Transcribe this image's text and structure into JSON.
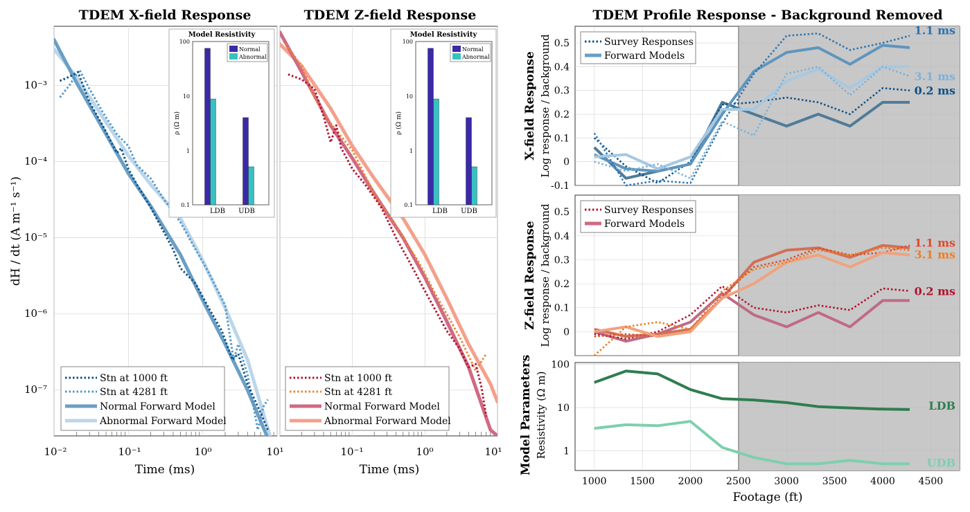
{
  "titles": {
    "x_field": "TDEM X-field Response",
    "z_field": "TDEM Z-field Response",
    "profile": "TDEM Profile Response - Background Removed"
  },
  "colors": {
    "x_stn1000": "#0d4f86",
    "x_stn4281": "#4f97c8",
    "x_normal": "#6a9fc4",
    "x_abnormal": "#bcd6ea",
    "z_stn1000": "#b1112b",
    "z_stn4281": "#ef8331",
    "z_normal": "#d06a83",
    "z_abnormal": "#f4a08a",
    "bar_normal": "#3a2aa8",
    "bar_abnormal": "#38c1c3",
    "shade": "#c8c8c8",
    "ldb": "#2f7d4e",
    "udb": "#7fcfae"
  },
  "chart_data": [
    {
      "id": "x_decay",
      "type": "line",
      "title": "TDEM X-field Response",
      "xlabel": "Time (ms)",
      "ylabel": "dH / dt (A m⁻¹ s⁻¹)",
      "xscale": "log",
      "yscale": "log",
      "xlim": [
        0.01,
        10
      ],
      "ylim": [
        2.5e-08,
        0.006
      ],
      "xtick_labels": [
        "10⁻²",
        "10⁻¹",
        "10⁰",
        "10¹"
      ],
      "ytick_labels": [
        "10⁻³",
        "10⁻⁴",
        "10⁻⁵",
        "10⁻⁶",
        "10⁻⁷"
      ],
      "legend_position": "bottom-left",
      "series": [
        {
          "name": "Stn at 1000 ft",
          "style": "dotted",
          "color_key": "x_stn1000",
          "x": [
            0.012,
            0.016,
            0.021,
            0.03,
            0.045,
            0.07,
            0.08,
            0.1,
            0.13,
            0.2,
            0.4,
            0.5,
            0.8,
            1.2,
            1.8,
            2.5,
            3.0,
            4.0,
            6.0,
            7.5
          ],
          "y": [
            0.00115,
            0.0013,
            0.0015,
            0.0006,
            0.0003,
            0.00013,
            0.00015,
            8e-05,
            5e-05,
            2.5e-05,
            7e-06,
            4e-06,
            2.5e-06,
            1.2e-06,
            6e-07,
            2.5e-07,
            3e-07,
            1.2e-07,
            5e-08,
            3e-08
          ]
        },
        {
          "name": "Stn at 4281 ft",
          "style": "dotted",
          "color_key": "x_stn4281",
          "x": [
            0.012,
            0.016,
            0.022,
            0.03,
            0.045,
            0.07,
            0.1,
            0.13,
            0.2,
            0.3,
            0.5,
            0.8,
            1.2,
            2.0,
            2.6,
            3.0,
            4.0,
            5.5,
            6.5,
            7.5
          ],
          "y": [
            0.0007,
            0.001,
            0.0016,
            0.0009,
            0.00045,
            0.00023,
            0.00016,
            9e-05,
            6e-05,
            3.2e-05,
            1.6e-05,
            7e-06,
            3.5e-06,
            1.3e-06,
            2.5e-07,
            4e-07,
            1.6e-07,
            3e-08,
            6e-08,
            7.5e-08
          ]
        },
        {
          "name": "Normal Forward Model",
          "style": "solid",
          "color_key": "x_normal",
          "x": [
            0.01,
            0.02,
            0.05,
            0.1,
            0.2,
            0.5,
            1.0,
            2.0,
            4.0,
            8.0
          ],
          "y": [
            0.004,
            0.0011,
            0.00023,
            7e-05,
            2.6e-05,
            6e-06,
            1.5e-06,
            4e-07,
            1e-07,
            2e-08
          ]
        },
        {
          "name": "Abnormal Forward Model",
          "style": "solid",
          "color_key": "x_abnormal",
          "x": [
            0.01,
            0.02,
            0.05,
            0.1,
            0.2,
            0.5,
            1.0,
            2.0,
            4.0,
            8.0
          ],
          "y": [
            0.003,
            0.0013,
            0.00033,
            0.00012,
            5e-05,
            1.8e-05,
            5e-06,
            1.2e-06,
            2.5e-07,
            2.5e-08
          ]
        }
      ]
    },
    {
      "id": "z_decay",
      "type": "line",
      "title": "TDEM Z-field Response",
      "xlabel": "Time (ms)",
      "xscale": "log",
      "yscale": "log",
      "xlim": [
        0.01,
        10
      ],
      "ylim": [
        2.5e-08,
        0.006
      ],
      "xtick_labels": [
        "10⁻²",
        "10⁻¹",
        "10⁰",
        "10¹"
      ],
      "legend_position": "bottom-left",
      "series": [
        {
          "name": "Stn at 1000 ft",
          "style": "dotted",
          "color_key": "z_stn1000",
          "x": [
            0.013,
            0.02,
            0.03,
            0.04,
            0.05,
            0.06,
            0.07,
            0.1,
            0.15,
            0.25,
            0.4,
            0.6,
            1.0,
            2.0,
            3.0,
            4.0,
            5.0,
            6.0,
            7.0
          ],
          "y": [
            0.0014,
            0.0012,
            0.0009,
            0.0004,
            0.00018,
            0.0003,
            0.00015,
            8e-05,
            5e-05,
            2.5e-05,
            1e-05,
            5e-06,
            2e-06,
            6e-07,
            3.5e-07,
            2e-07,
            2.2e-07,
            1.1e-07,
            4.5e-08
          ]
        },
        {
          "name": "Stn at 4281 ft",
          "style": "dotted",
          "color_key": "z_stn4281",
          "x": [
            0.012,
            0.02,
            0.03,
            0.05,
            0.1,
            0.2,
            0.4,
            0.8,
            1.5,
            3.0,
            5.0,
            7.0
          ],
          "y": [
            0.0035,
            0.0018,
            0.0007,
            0.00032,
            0.00014,
            3.8e-05,
            1.4e-05,
            5e-06,
            1.6e-06,
            5e-07,
            1.8e-07,
            3e-07
          ]
        },
        {
          "name": "Normal Forward Model",
          "style": "solid",
          "color_key": "z_normal",
          "x": [
            0.01,
            0.02,
            0.05,
            0.1,
            0.2,
            0.5,
            1.0,
            2.0,
            4.0,
            8.0,
            10.0
          ],
          "y": [
            0.005,
            0.0015,
            0.0003,
            0.00011,
            3.8e-05,
            1e-05,
            3e-06,
            8e-07,
            2e-07,
            3e-08,
            2.5e-08
          ]
        },
        {
          "name": "Abnormal Forward Model",
          "style": "solid",
          "color_key": "z_abnormal",
          "x": [
            0.01,
            0.02,
            0.05,
            0.1,
            0.2,
            0.5,
            1.0,
            2.0,
            4.0,
            8.0,
            10.0
          ],
          "y": [
            0.0035,
            0.0018,
            0.0005,
            0.00016,
            6e-05,
            1.8e-05,
            6e-06,
            1.6e-06,
            4e-07,
            1.2e-07,
            7e-08
          ]
        }
      ]
    },
    {
      "id": "x_inset",
      "type": "bar",
      "title": "Model Resistivity",
      "ylabel": "ρ (Ω m)",
      "yscale": "log",
      "ylim": [
        0.1,
        100
      ],
      "ytick_labels": [
        "100",
        "10",
        "1",
        "0.1"
      ],
      "categories": [
        "LDB",
        "UDB"
      ],
      "series": [
        {
          "name": "Normal",
          "color_key": "bar_normal",
          "values": [
            75,
            4
          ]
        },
        {
          "name": "Abnormal",
          "color_key": "bar_abnormal",
          "values": [
            8.8,
            0.5
          ]
        }
      ]
    },
    {
      "id": "z_inset",
      "type": "bar",
      "title": "Model Resistivity",
      "ylabel": "ρ (Ω m)",
      "yscale": "log",
      "ylim": [
        0.1,
        100
      ],
      "ytick_labels": [
        "100",
        "10",
        "1",
        "0.1"
      ],
      "categories": [
        "LDB",
        "UDB"
      ],
      "series": [
        {
          "name": "Normal",
          "color_key": "bar_normal",
          "values": [
            75,
            4
          ]
        },
        {
          "name": "Abnormal",
          "color_key": "bar_abnormal",
          "values": [
            8.8,
            0.5
          ]
        }
      ]
    },
    {
      "id": "x_profile",
      "type": "line",
      "ylabel_bold": "X-field Response",
      "ylabel": "Log response / background",
      "xlim": [
        800,
        4800
      ],
      "ylim": [
        -0.1,
        0.57
      ],
      "yticks": [
        -0.1,
        0,
        0.1,
        0.2,
        0.3,
        0.4,
        0.5
      ],
      "ytick_labels": [
        "-0.1",
        "0",
        "0.1",
        "0.2",
        "0.3",
        "0.4",
        "0.5"
      ],
      "shade_from": 2500,
      "legend": [
        "Survey Responses",
        "Forward Models"
      ],
      "series": [
        {
          "name": "0.2 ms model",
          "style": "solid",
          "color": "#4f7b98",
          "label": "",
          "x": [
            1000,
            1330,
            1660,
            2000,
            2330,
            2660,
            3000,
            3330,
            3660,
            4000,
            4281
          ],
          "y": [
            0.06,
            -0.07,
            -0.04,
            -0.01,
            0.25,
            0.2,
            0.15,
            0.2,
            0.15,
            0.25,
            0.25
          ]
        },
        {
          "name": "0.2 ms survey",
          "style": "dotted",
          "color": "#0d4f86",
          "label": "0.2 ms",
          "x": [
            1000,
            1330,
            1660,
            2000,
            2330,
            2660,
            3000,
            3330,
            3660,
            4000,
            4281
          ],
          "y": [
            0.1,
            -0.02,
            -0.09,
            0.0,
            0.24,
            0.25,
            0.27,
            0.25,
            0.2,
            0.31,
            0.3
          ]
        },
        {
          "name": "1.1 ms model",
          "style": "solid",
          "color": "#5f95bd",
          "label": "",
          "x": [
            1000,
            1330,
            1660,
            2000,
            2330,
            2660,
            3000,
            3330,
            3660,
            4000,
            4281
          ],
          "y": [
            0.03,
            -0.03,
            -0.04,
            -0.01,
            0.2,
            0.38,
            0.46,
            0.48,
            0.41,
            0.49,
            0.48
          ]
        },
        {
          "name": "1.1 ms survey",
          "style": "dotted",
          "color": "#2b73b1",
          "label": "1.1 ms",
          "x": [
            1000,
            1330,
            1660,
            2000,
            2330,
            2660,
            3000,
            3330,
            3660,
            4000,
            4281
          ],
          "y": [
            0.12,
            -0.1,
            -0.08,
            -0.09,
            0.16,
            0.37,
            0.53,
            0.54,
            0.47,
            0.5,
            0.53
          ]
        },
        {
          "name": "3.1 ms model",
          "style": "solid",
          "color": "#a6c8e2",
          "label": "",
          "x": [
            1000,
            1330,
            1660,
            2000,
            2330,
            2660,
            3000,
            3330,
            3660,
            4000,
            4281
          ],
          "y": [
            0.02,
            0.03,
            -0.03,
            0.02,
            0.22,
            0.22,
            0.34,
            0.39,
            0.31,
            0.4,
            0.4
          ]
        },
        {
          "name": "3.1 ms survey",
          "style": "dotted",
          "color": "#7ab3dc",
          "label": "3.1 ms",
          "x": [
            1000,
            1330,
            1660,
            2000,
            2330,
            2660,
            3000,
            3330,
            3660,
            4000,
            4281
          ],
          "y": [
            0.0,
            -0.04,
            -0.01,
            -0.07,
            0.17,
            0.11,
            0.37,
            0.4,
            0.28,
            0.4,
            0.36
          ]
        }
      ]
    },
    {
      "id": "z_profile",
      "type": "line",
      "ylabel_bold": "Z-field Response",
      "ylabel": "Log response / background",
      "xlim": [
        800,
        4800
      ],
      "ylim": [
        -0.1,
        0.57
      ],
      "yticks": [
        0,
        0.1,
        0.2,
        0.3,
        0.4,
        0.5
      ],
      "ytick_labels": [
        "0",
        "0.1",
        "0.2",
        "0.3",
        "0.4",
        "0.5"
      ],
      "shade_from": 2500,
      "legend": [
        "Survey Responses",
        "Forward Models"
      ],
      "series": [
        {
          "name": "0.2 ms model",
          "style": "solid",
          "color": "#c06a85",
          "label": "",
          "x": [
            1000,
            1330,
            1660,
            2000,
            2330,
            2660,
            3000,
            3330,
            3660,
            4000,
            4281
          ],
          "y": [
            0.0,
            -0.04,
            -0.01,
            0.04,
            0.16,
            0.07,
            0.02,
            0.08,
            0.02,
            0.13,
            0.13
          ]
        },
        {
          "name": "0.2 ms survey",
          "style": "dotted",
          "color": "#b1112b",
          "label": "0.2 ms",
          "x": [
            1000,
            1330,
            1660,
            2000,
            2330,
            2660,
            3000,
            3330,
            3660,
            4000,
            4281
          ],
          "y": [
            -0.01,
            -0.03,
            0.0,
            0.07,
            0.19,
            0.1,
            0.08,
            0.11,
            0.09,
            0.18,
            0.17
          ]
        },
        {
          "name": "1.1 ms model",
          "style": "solid",
          "color": "#d36f55",
          "label": "",
          "x": [
            1000,
            1330,
            1660,
            2000,
            2330,
            2660,
            3000,
            3330,
            3660,
            4000,
            4281
          ],
          "y": [
            0.01,
            -0.02,
            -0.01,
            0.01,
            0.14,
            0.29,
            0.34,
            0.35,
            0.31,
            0.36,
            0.35
          ]
        },
        {
          "name": "1.1 ms survey",
          "style": "dotted",
          "color": "#e04a2a",
          "label": "1.1 ms",
          "x": [
            1000,
            1330,
            1660,
            2000,
            2330,
            2660,
            3000,
            3330,
            3660,
            4000,
            4281
          ],
          "y": [
            -0.02,
            -0.01,
            -0.02,
            0.0,
            0.15,
            0.27,
            0.3,
            0.35,
            0.32,
            0.33,
            0.36
          ]
        },
        {
          "name": "3.1 ms model",
          "style": "solid",
          "color": "#f0a27e",
          "label": "",
          "x": [
            1000,
            1330,
            1660,
            2000,
            2330,
            2660,
            3000,
            3330,
            3660,
            4000,
            4281
          ],
          "y": [
            0.0,
            0.02,
            -0.02,
            0.0,
            0.14,
            0.2,
            0.29,
            0.32,
            0.27,
            0.33,
            0.32
          ]
        },
        {
          "name": "3.1 ms survey",
          "style": "dotted",
          "color": "#f07d20",
          "label": "3.1 ms",
          "x": [
            1000,
            1330,
            1660,
            2000,
            2330,
            2660,
            3000,
            3330,
            3660,
            4000,
            4281
          ],
          "y": [
            -0.1,
            0.02,
            0.04,
            0.01,
            0.17,
            0.26,
            0.29,
            0.34,
            0.32,
            0.35,
            0.34
          ]
        }
      ]
    },
    {
      "id": "model_params",
      "type": "line",
      "ylabel_bold": "Model Parameters",
      "ylabel": "Resistivity (Ω m)",
      "xlabel": "Footage (ft)",
      "yscale": "log",
      "xlim": [
        800,
        4800
      ],
      "ylim": [
        0.35,
        110
      ],
      "yticks": [
        1,
        10,
        100
      ],
      "ytick_labels": [
        "1",
        "10",
        "100"
      ],
      "xticks": [
        1000,
        1500,
        2000,
        2500,
        3000,
        3500,
        4000,
        4500
      ],
      "xtick_labels": [
        "1000",
        "1500",
        "2000",
        "2500",
        "3000",
        "3500",
        "4000",
        "4500"
      ],
      "shade_from": 2500,
      "series": [
        {
          "name": "LDB",
          "style": "solid",
          "color_key": "ldb",
          "label": "LDB",
          "x": [
            1000,
            1330,
            1660,
            2000,
            2330,
            2660,
            3000,
            3330,
            3660,
            4000,
            4281
          ],
          "y": [
            38,
            70,
            60,
            26,
            16,
            15,
            13,
            10.5,
            9.8,
            9.2,
            9
          ]
        },
        {
          "name": "UDB",
          "style": "solid",
          "color_key": "udb",
          "label": "UDB",
          "x": [
            1000,
            1330,
            1660,
            2000,
            2330,
            2660,
            3000,
            3330,
            3660,
            4000,
            4281
          ],
          "y": [
            3.3,
            4.0,
            3.8,
            4.8,
            1.2,
            0.7,
            0.5,
            0.5,
            0.6,
            0.5,
            0.5
          ]
        }
      ]
    }
  ]
}
